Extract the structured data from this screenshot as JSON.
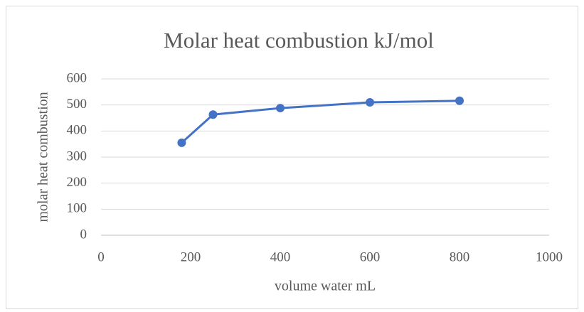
{
  "chart_data": {
    "type": "scatter",
    "line": true,
    "title": "Molar heat combustion kJ/mol",
    "x_label": "volume water mL",
    "y_label": "molar heat combustion",
    "x": [
      180,
      250,
      400,
      600,
      800
    ],
    "values": [
      355,
      463,
      488,
      510,
      516
    ],
    "color": "#4472c4",
    "xlim": [
      0,
      1000
    ],
    "xticks": [
      0,
      200,
      400,
      600,
      800,
      1000
    ],
    "ylim": [
      0,
      600
    ],
    "yticks": [
      0,
      100,
      200,
      300,
      400,
      500,
      600
    ],
    "grid": true
  }
}
